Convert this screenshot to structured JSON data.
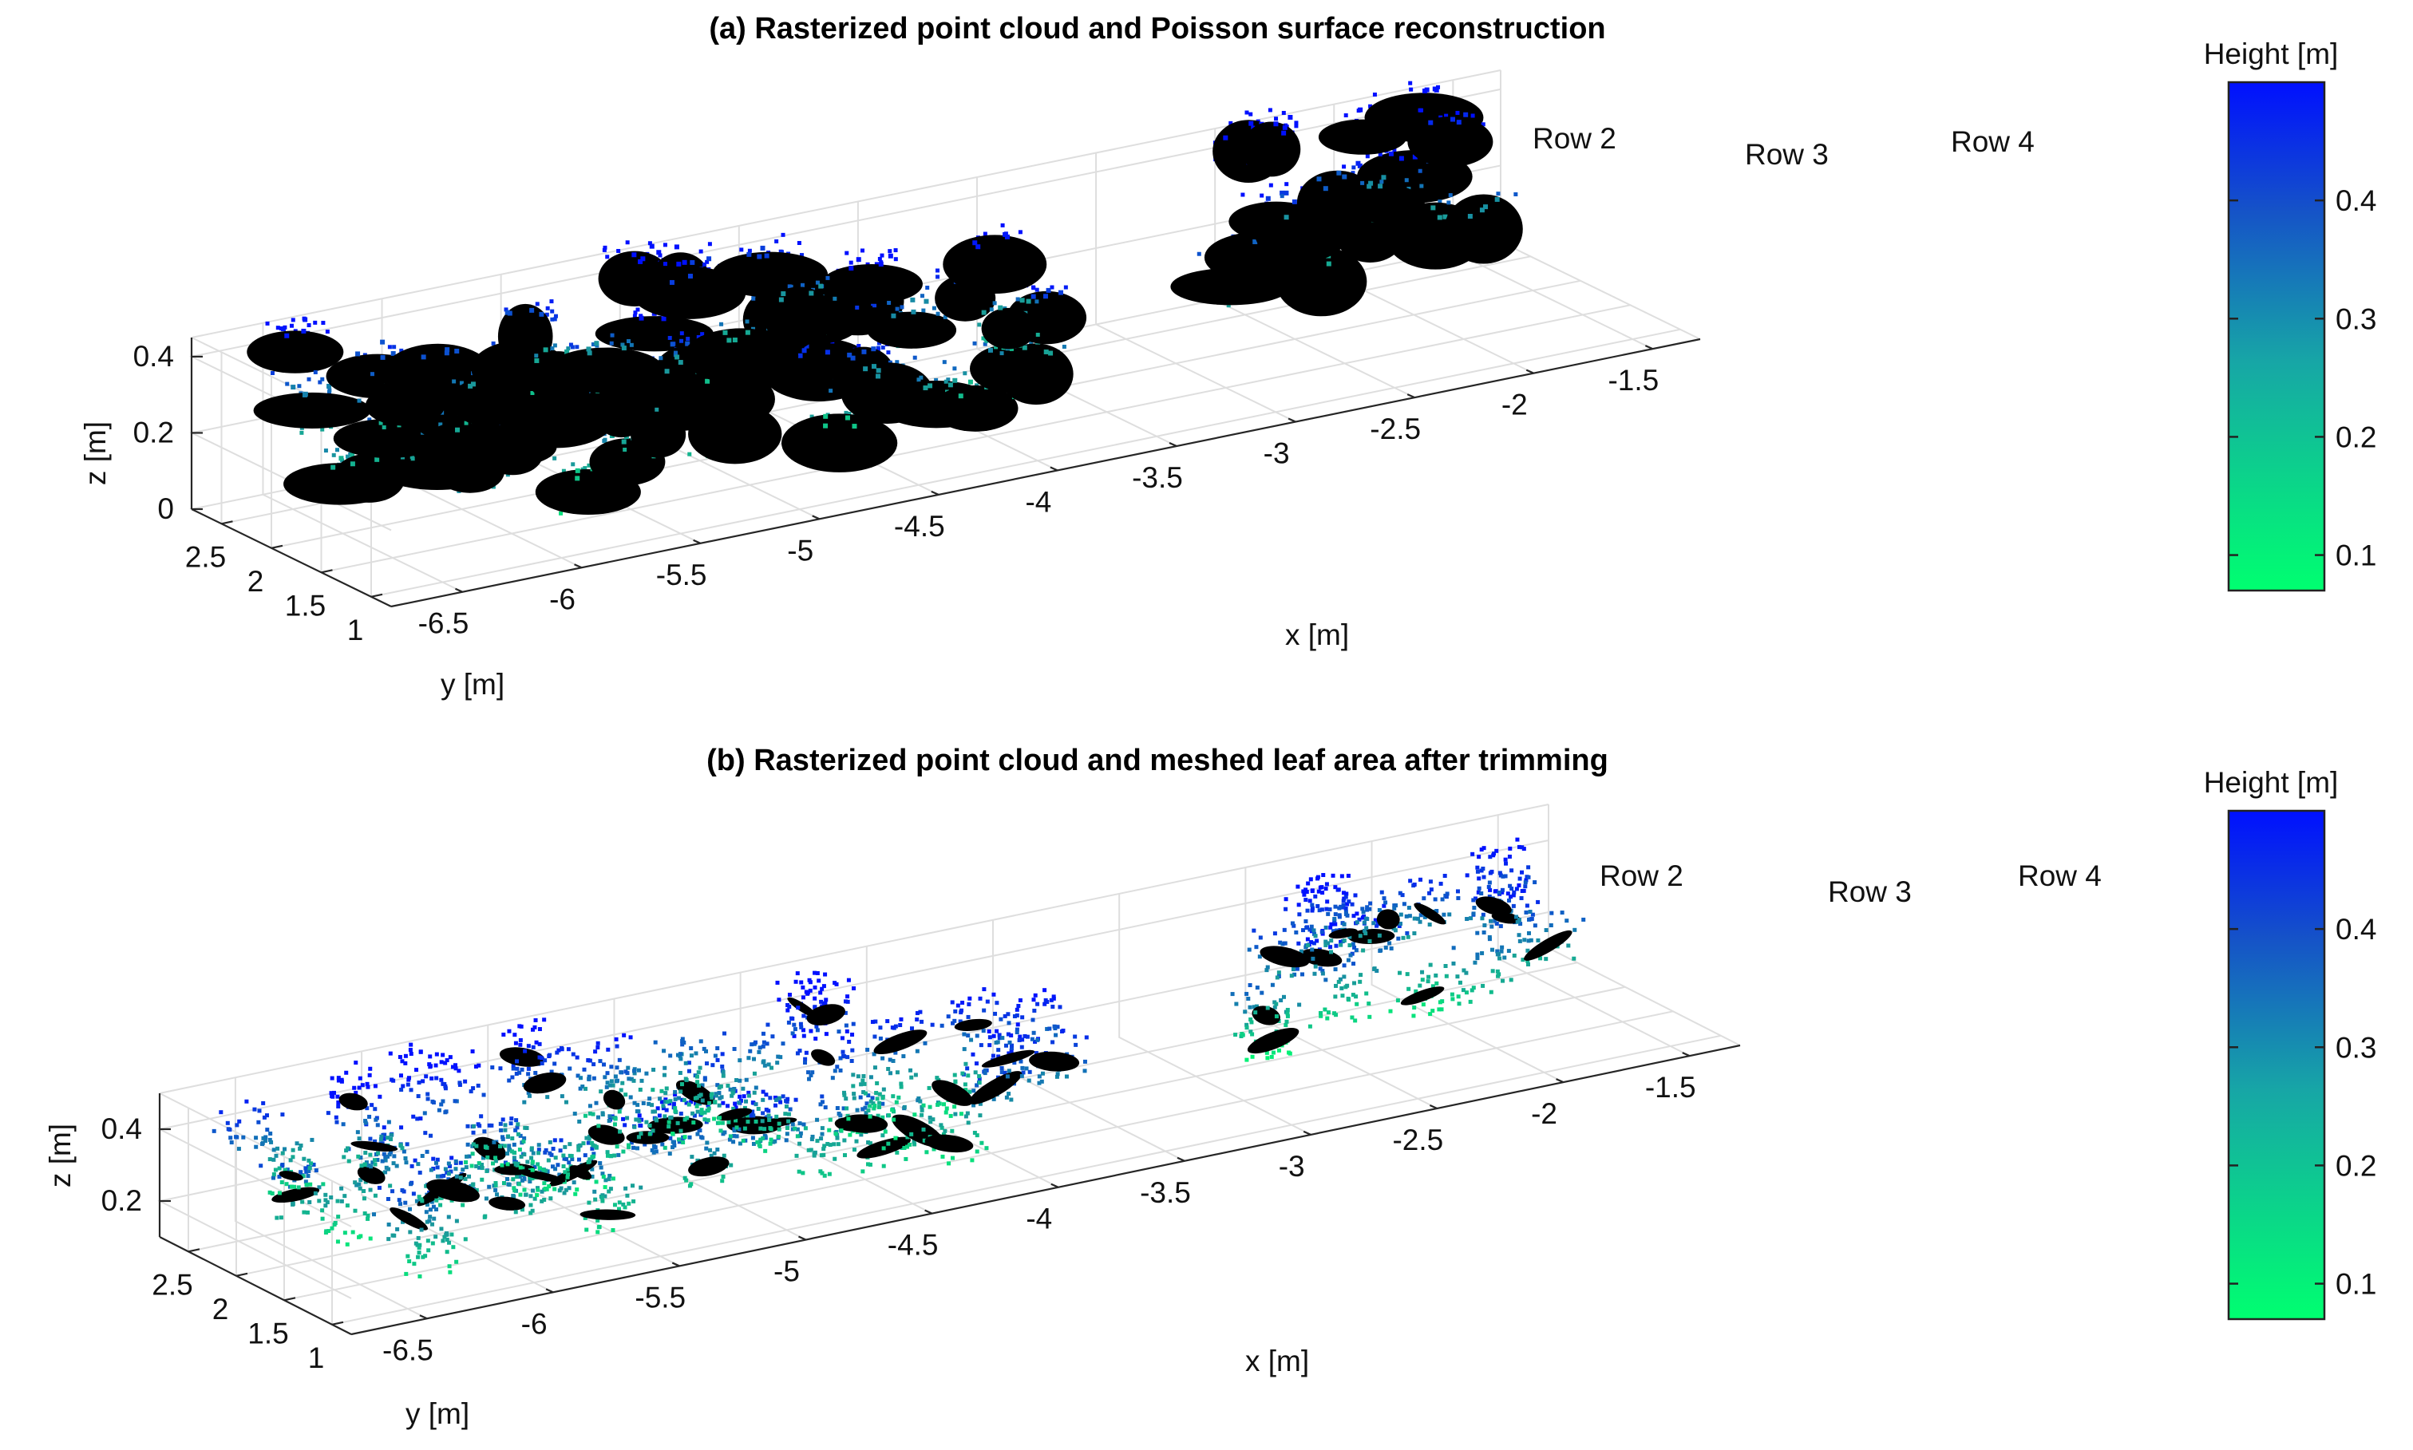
{
  "colors": {
    "low": "#00ff70",
    "mid": "#1a9a9a",
    "high": "#0010ff",
    "mesh": "#000000",
    "grid": "#dedede"
  },
  "colorbar": {
    "label": "Height [m]",
    "ticks": [
      0.1,
      0.2,
      0.3,
      0.4
    ],
    "range": [
      0.07,
      0.5
    ]
  },
  "chart_data": [
    {
      "type": "scatter3d",
      "title": "(a) Rasterized point cloud and Poisson surface reconstruction",
      "xlabel": "x [m]",
      "ylabel": "y [m]",
      "zlabel": "z [m]",
      "xticks": [
        -6.5,
        -6,
        -5.5,
        -5,
        -4.5,
        -4,
        -3.5,
        -3,
        -2.5,
        -2,
        -1.5
      ],
      "xticklabels": [
        "-6.5",
        "-6",
        "-5.5",
        "-5",
        "-4.5",
        "-4",
        "-3.5",
        "-3",
        "-2.5",
        "-2",
        "-1.5"
      ],
      "yticks": [
        1,
        1.5,
        2,
        2.5
      ],
      "yticklabels": [
        "1",
        "1.5",
        "2",
        "2.5"
      ],
      "zticks": [
        0,
        0.2,
        0.4
      ],
      "zticklabels": [
        "0",
        "0.2",
        "0.4"
      ],
      "xlim": [
        -6.8,
        -1.3
      ],
      "ylim": [
        0.8,
        2.8
      ],
      "zlim": [
        0,
        0.45
      ],
      "grid": true,
      "annotations": [
        "Row 2",
        "Row 3",
        "Row 4"
      ],
      "rows": [
        {
          "y": 1.3,
          "x": [
            -6.5,
            -3.7
          ],
          "z": [
            0.1,
            0.35
          ]
        },
        {
          "y": 2.0,
          "x": [
            -6.6,
            -3.6
          ],
          "z": [
            0.12,
            0.38
          ]
        },
        {
          "y": 2.6,
          "x": [
            -6.5,
            -4.2
          ],
          "z": [
            0.15,
            0.42
          ]
        },
        {
          "y": 1.9,
          "x": [
            -2.9,
            -1.6
          ],
          "z": [
            0.12,
            0.38
          ]
        },
        {
          "y": 2.5,
          "x": [
            -2.6,
            -1.5
          ],
          "z": [
            0.15,
            0.45
          ]
        }
      ]
    },
    {
      "type": "scatter3d",
      "title": "(b) Rasterized point cloud and meshed leaf area after trimming",
      "xlabel": "x [m]",
      "ylabel": "y [m]",
      "zlabel": "z [m]",
      "xticks": [
        -6.5,
        -6,
        -5.5,
        -5,
        -4.5,
        -4,
        -3.5,
        -3,
        -2.5,
        -2,
        -1.5
      ],
      "xticklabels": [
        "-6.5",
        "-6",
        "-5.5",
        "-5",
        "-4.5",
        "-4",
        "-3.5",
        "-3",
        "-2.5",
        "-2",
        "-1.5"
      ],
      "yticks": [
        1,
        1.5,
        2,
        2.5
      ],
      "yticklabels": [
        "1",
        "1.5",
        "2",
        "2.5"
      ],
      "zticks": [
        0.2,
        0.4
      ],
      "zticklabels": [
        "0.2",
        "0.4"
      ],
      "xlim": [
        -6.8,
        -1.3
      ],
      "ylim": [
        0.8,
        2.8
      ],
      "zlim": [
        0.1,
        0.5
      ],
      "grid": true,
      "annotations": [
        "Row 2",
        "Row 3",
        "Row 4"
      ],
      "rows": [
        {
          "y": 1.3,
          "x": [
            -6.5,
            -3.7
          ],
          "z": [
            0.15,
            0.38
          ]
        },
        {
          "y": 2.0,
          "x": [
            -6.6,
            -3.6
          ],
          "z": [
            0.15,
            0.4
          ]
        },
        {
          "y": 2.6,
          "x": [
            -6.5,
            -4.2
          ],
          "z": [
            0.18,
            0.45
          ]
        },
        {
          "y": 1.9,
          "x": [
            -2.9,
            -1.6
          ],
          "z": [
            0.15,
            0.4
          ]
        },
        {
          "y": 2.5,
          "x": [
            -2.6,
            -1.5
          ],
          "z": [
            0.18,
            0.45
          ]
        }
      ]
    }
  ]
}
